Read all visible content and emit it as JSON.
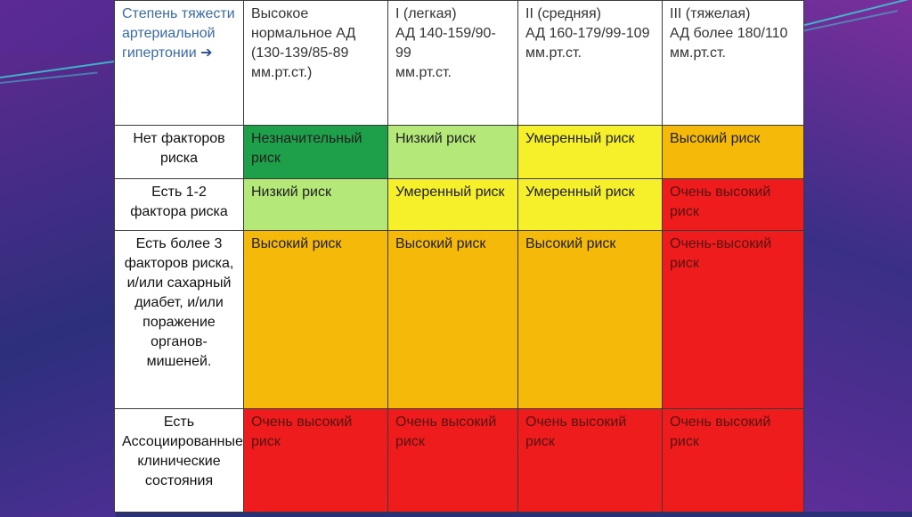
{
  "slide": {
    "colors": {
      "very_high": "#ee1c1c",
      "high": "#f5b90a",
      "moderate": "#f5f02a",
      "low": "#b4e879",
      "insignificant": "#1ea04a"
    }
  },
  "table": {
    "corner": "Степень тяжести артериальной гипертонии",
    "corner_arrow": "➔",
    "columns": [
      "Высокое нормальное АД (130-139/85-89 мм.рт.ст.)",
      "I (легкая)\nАД 140-159/90-99\nмм.рт.ст.",
      "II (средняя)\nАД 160-179/99-109 мм.рт.ст.",
      "III (тяжелая)\nАД более 180/110 мм.рт.ст."
    ],
    "rows": [
      {
        "label": "Нет факторов риска",
        "cells": [
          "Незначительный риск",
          "Низкий риск",
          "Умеренный риск",
          "Высокий риск"
        ]
      },
      {
        "label": "Есть 1-2 фактора риска",
        "cells": [
          "Низкий риск",
          "Умеренный риск",
          "Умеренный риск",
          "Очень высокий риск"
        ]
      },
      {
        "label": "Есть более 3 факторов риска, и/или сахарный диабет, и/или поражение органов-мишеней.",
        "cells": [
          "Высокий риск",
          "Высокий риск",
          "Высокий риск",
          "Очень-высокий риск"
        ]
      },
      {
        "label": "Есть Ассоциированные клинические состояния",
        "cells": [
          "Очень высокий риск",
          "Очень высокий риск",
          "Очень высокий риск",
          "Очень высокий риск"
        ]
      }
    ]
  }
}
